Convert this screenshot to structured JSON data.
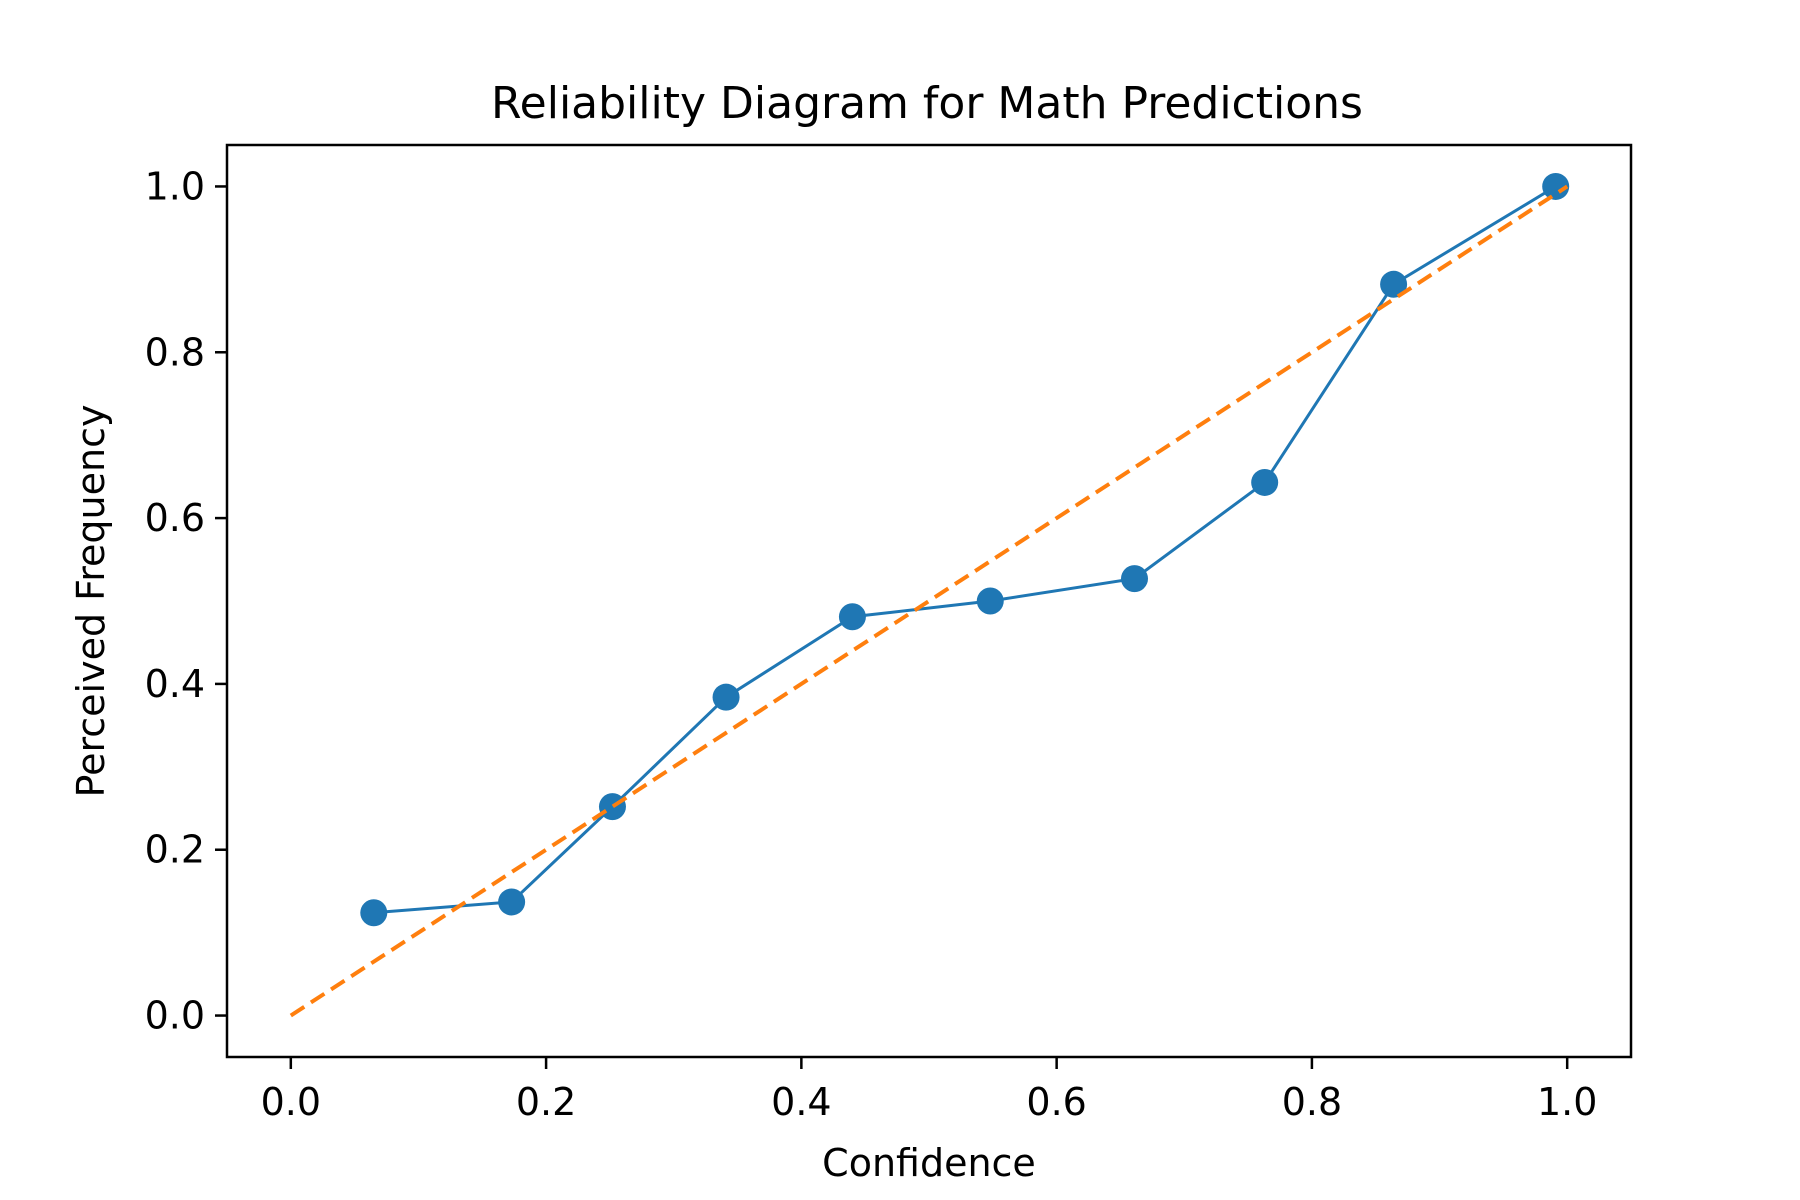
{
  "chart_data": {
    "type": "line",
    "title": "Reliability Diagram for Math Predictions",
    "xlabel": "Confidence",
    "ylabel": "Perceived Frequency",
    "xlim": [
      -0.05,
      1.05
    ],
    "ylim": [
      -0.05,
      1.05
    ],
    "xticks": [
      "0.0",
      "0.2",
      "0.4",
      "0.6",
      "0.8",
      "1.0"
    ],
    "yticks": [
      "0.0",
      "0.2",
      "0.4",
      "0.6",
      "0.8",
      "1.0"
    ],
    "grid": false,
    "legend": "none",
    "series": [
      {
        "style": "solid line with circle markers",
        "color": "#1f77b4",
        "x": [
          0.065,
          0.173,
          0.252,
          0.341,
          0.44,
          0.548,
          0.661,
          0.763,
          0.864,
          0.991
        ],
        "y": [
          0.124,
          0.137,
          0.252,
          0.384,
          0.481,
          0.5,
          0.527,
          0.643,
          0.882,
          1.0
        ]
      },
      {
        "style": "dashed line",
        "color": "#ff7f0e",
        "x": [
          0.0,
          1.0
        ],
        "y": [
          0.0,
          1.0
        ]
      }
    ]
  }
}
